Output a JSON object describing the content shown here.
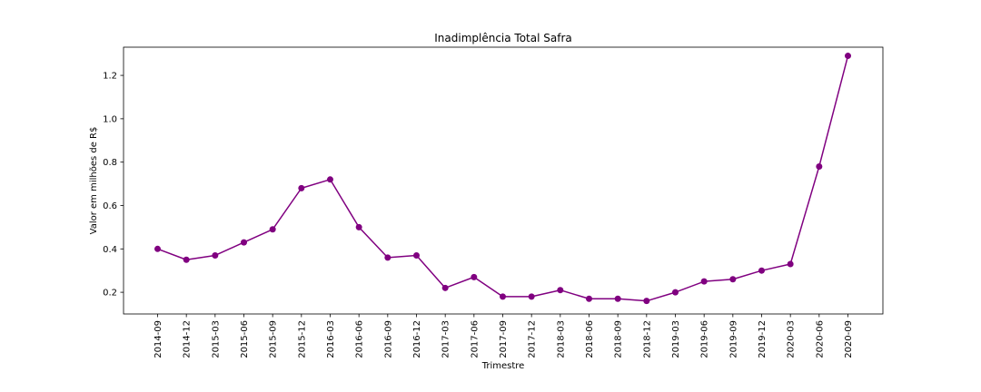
{
  "chart_data": {
    "type": "line",
    "title": "Inadimplência Total Safra",
    "xlabel": "Trimestre",
    "ylabel": "Valor em milhões de R$",
    "ylim": [
      0.1,
      1.33
    ],
    "yticks": [
      "0.2",
      "0.4",
      "0.6",
      "0.8",
      "1.0",
      "1.2"
    ],
    "grid": false,
    "color": "#800080",
    "categories": [
      "2014-09",
      "2014-12",
      "2015-03",
      "2015-06",
      "2015-09",
      "2015-12",
      "2016-03",
      "2016-06",
      "2016-09",
      "2016-12",
      "2017-03",
      "2017-06",
      "2017-09",
      "2017-12",
      "2018-03",
      "2018-06",
      "2018-09",
      "2018-12",
      "2019-03",
      "2019-06",
      "2019-09",
      "2019-12",
      "2020-03",
      "2020-06",
      "2020-09"
    ],
    "values": [
      0.4,
      0.35,
      0.37,
      0.43,
      0.49,
      0.68,
      0.72,
      0.5,
      0.36,
      0.37,
      0.22,
      0.27,
      0.18,
      0.18,
      0.21,
      0.17,
      0.17,
      0.16,
      0.2,
      0.25,
      0.26,
      0.3,
      0.33,
      0.78,
      1.29
    ]
  }
}
